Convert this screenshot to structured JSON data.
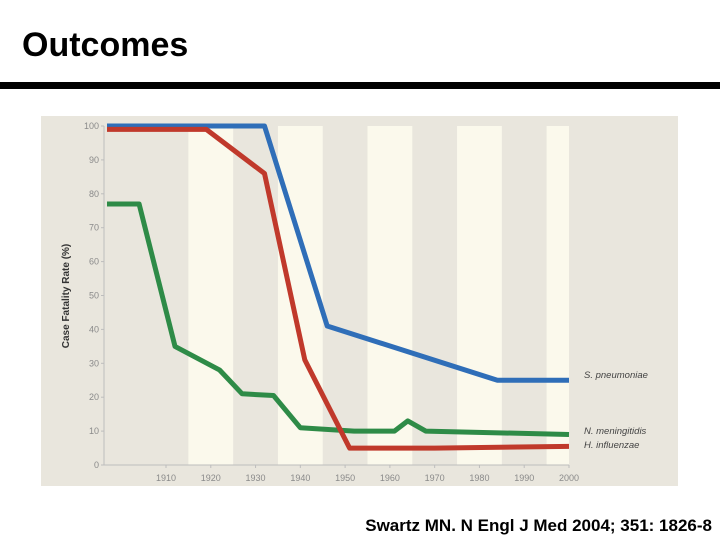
{
  "slide": {
    "title": "Outcomes",
    "citation": "Swartz MN. N Engl J Med 2004; 351: 1826-8"
  },
  "colors": {
    "figure_background": "#e9e6dd",
    "stripe": "#fbf9ec",
    "axis": "#bdbdbd",
    "tick_text": "#8a8a8a"
  },
  "chart_data": {
    "type": "line",
    "ylabel": "Case Fatality Rate (%)",
    "xlabel": "",
    "xlim": [
      1886,
      2010
    ],
    "ylim": [
      0,
      100
    ],
    "x_ticks": [
      1910,
      1920,
      1930,
      1940,
      1950,
      1960,
      1970,
      1980,
      1990,
      2000
    ],
    "y_ticks": [
      0,
      10,
      20,
      30,
      40,
      50,
      60,
      70,
      80,
      90,
      100
    ],
    "stripes": [
      [
        1915,
        1925
      ],
      [
        1935,
        1945
      ],
      [
        1955,
        1965
      ],
      [
        1975,
        1985
      ],
      [
        1995,
        2000
      ]
    ],
    "grid": false,
    "legend": "labels at right end of lines",
    "series": [
      {
        "name": "S. pneumoniae",
        "color": "#2f6eb8",
        "x": [
          1888,
          1932,
          1946,
          1984,
          2000
        ],
        "y": [
          100,
          100,
          41,
          25,
          25
        ]
      },
      {
        "name": "N. meningitidis",
        "color": "#2e8b47",
        "x": [
          1888,
          1901,
          1904,
          1912,
          1922,
          1927,
          1934,
          1940,
          1952,
          1961,
          1964,
          1968,
          2000
        ],
        "y": [
          77,
          77,
          77,
          35,
          28,
          21,
          20.5,
          11,
          10,
          10,
          13,
          10,
          9
        ]
      },
      {
        "name": "H. influenzae",
        "color": "#c0392b",
        "x": [
          1888,
          1909,
          1919,
          1932,
          1941,
          1951,
          1970,
          2000
        ],
        "y": [
          99,
          99,
          99,
          86,
          31,
          5,
          5,
          5.5
        ]
      }
    ]
  }
}
